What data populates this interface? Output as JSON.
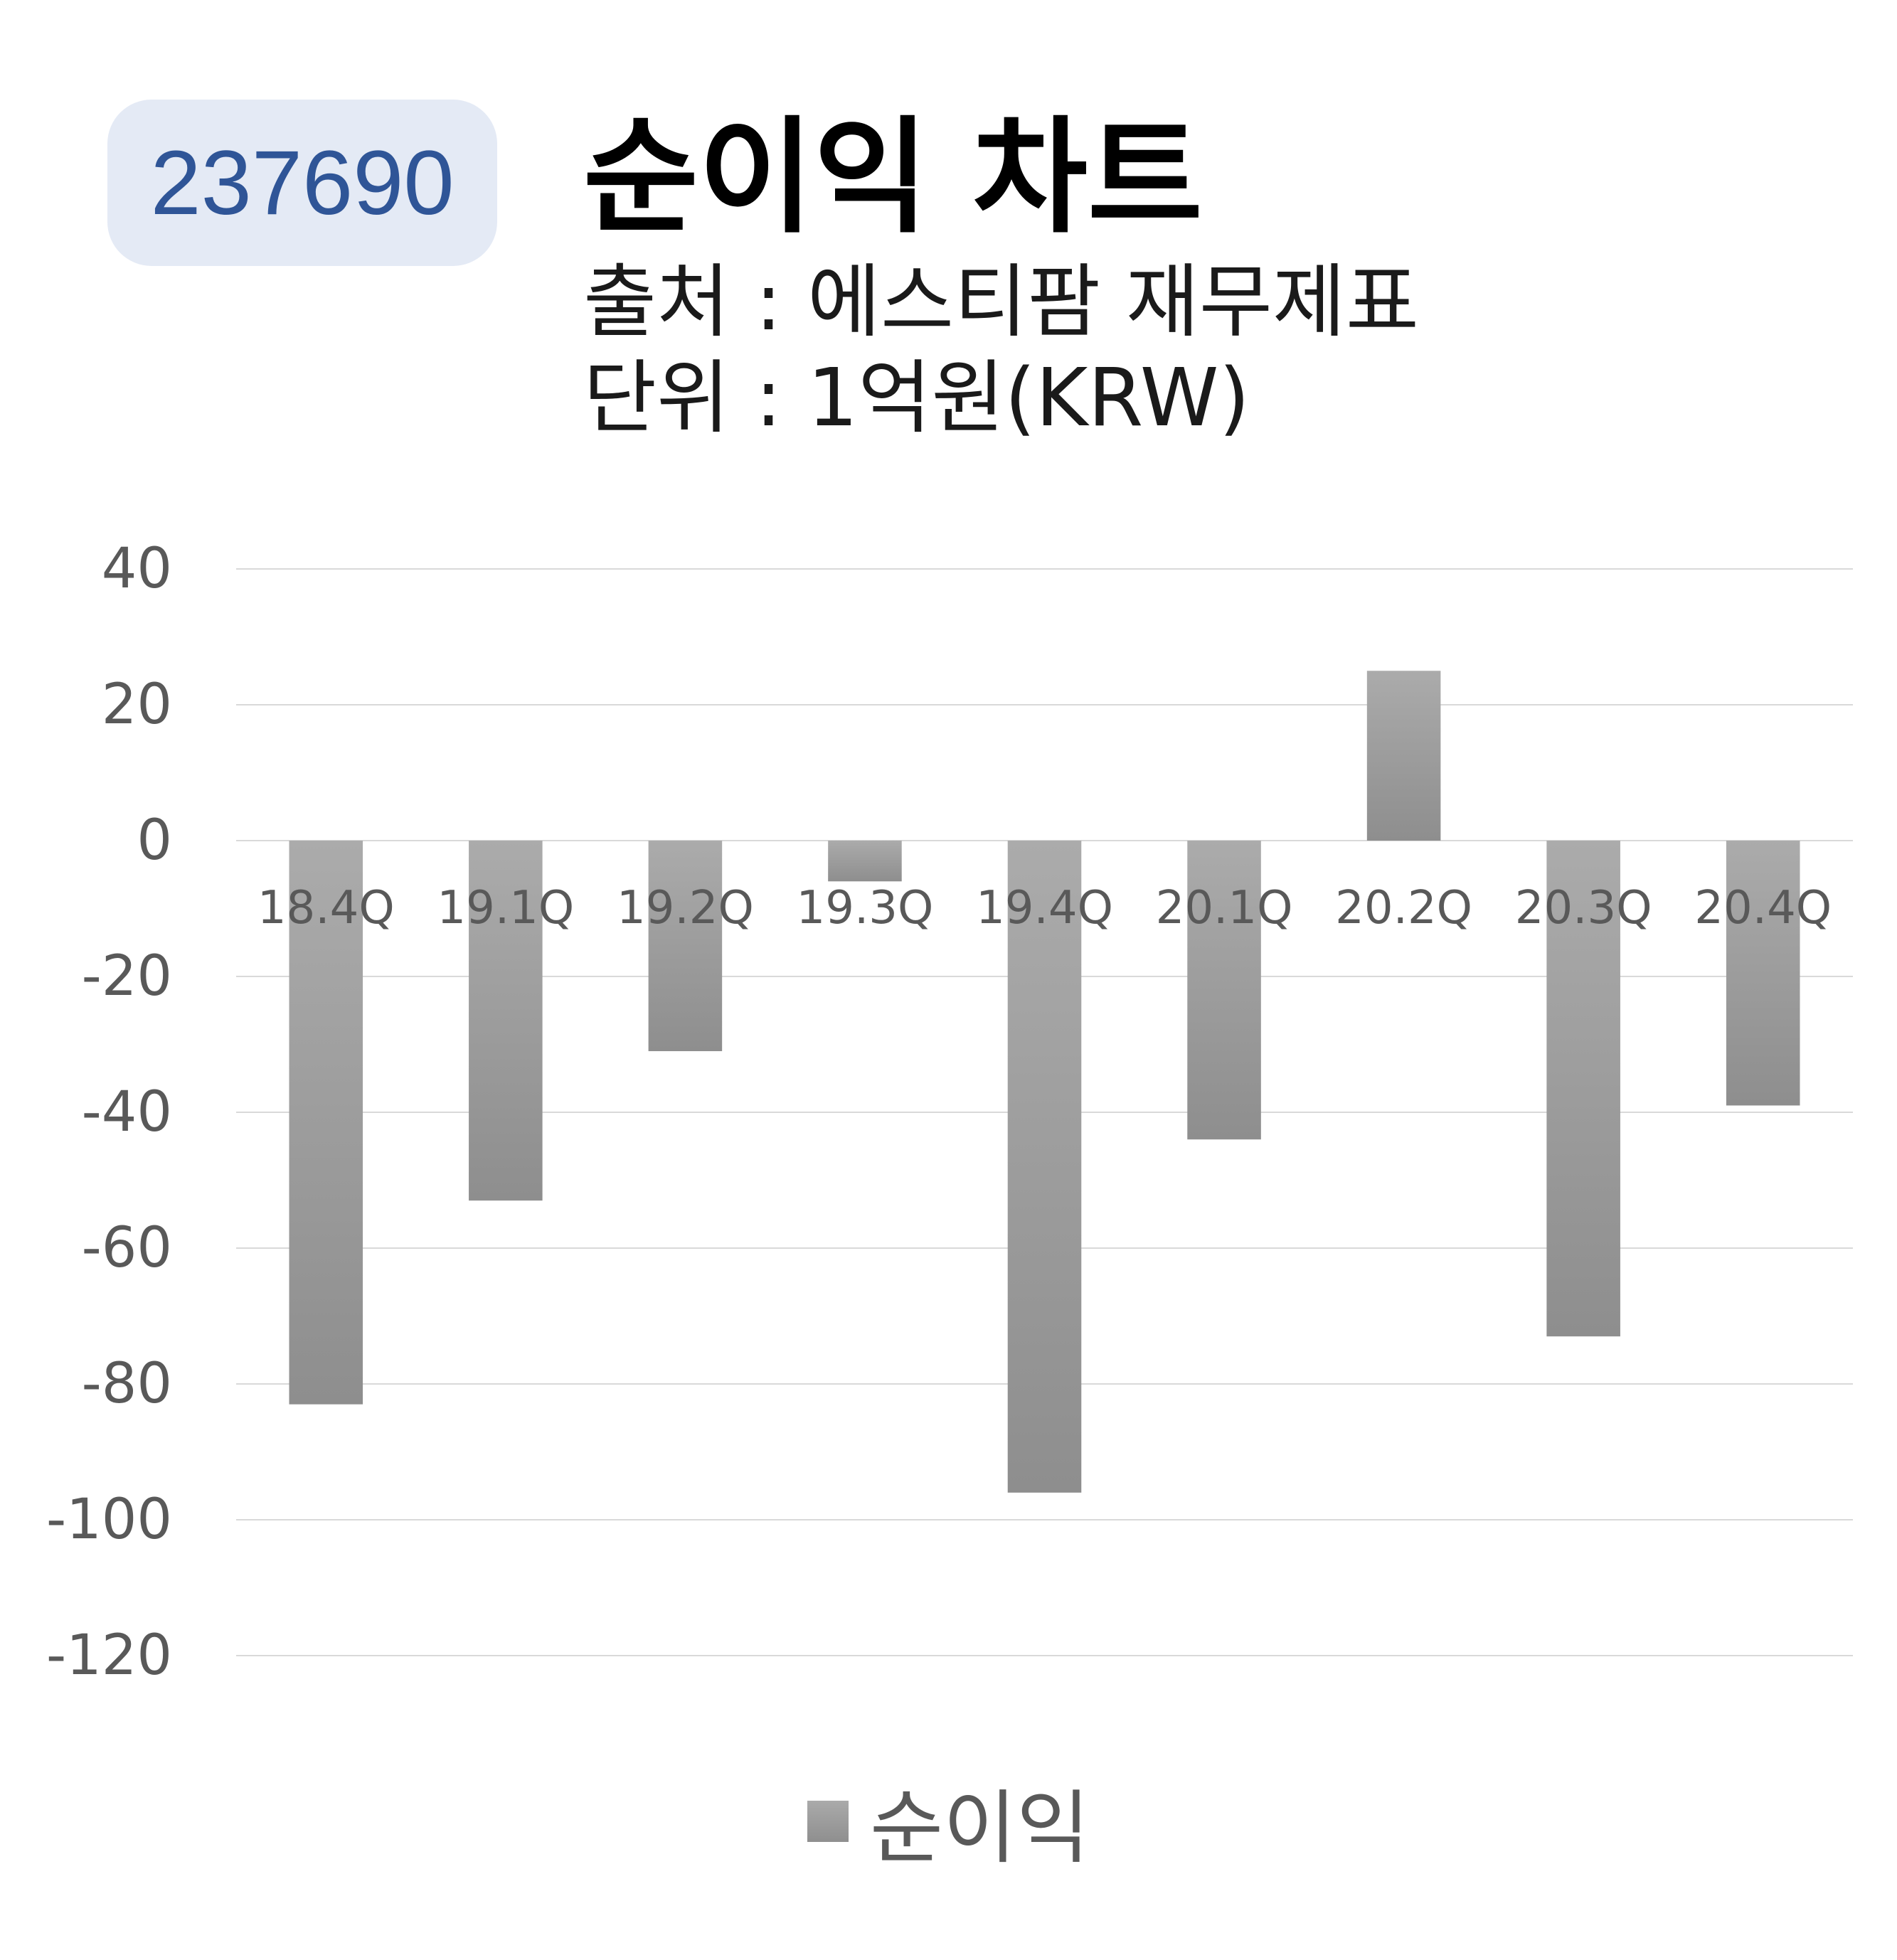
{
  "header": {
    "code": "237690",
    "title": "순이익 차트",
    "source": "출처 : 에스티팜 재무제표",
    "unit": "단위 : 1억원(KRW)"
  },
  "chart_data": {
    "type": "bar",
    "categories": [
      "18.4Q",
      "19.1Q",
      "19.2Q",
      "19.3Q",
      "19.4Q",
      "20.1Q",
      "20.2Q",
      "20.3Q",
      "20.4Q"
    ],
    "series": [
      {
        "name": "순이익",
        "values": [
          -83,
          -53,
          -31,
          -6,
          -96,
          -44,
          25,
          -73,
          -39
        ]
      }
    ],
    "ylim": [
      -120,
      40
    ],
    "yticks": [
      "40",
      "20",
      "0",
      "-20",
      "-40",
      "-60",
      "-80",
      "-100",
      "-120"
    ],
    "grid": true,
    "legend_position": "bottom",
    "colors": {
      "bar_top": "#ababab",
      "bar_bottom": "#8e8e8e",
      "grid": "#d9d9d9",
      "tick_text": "#595959"
    }
  }
}
